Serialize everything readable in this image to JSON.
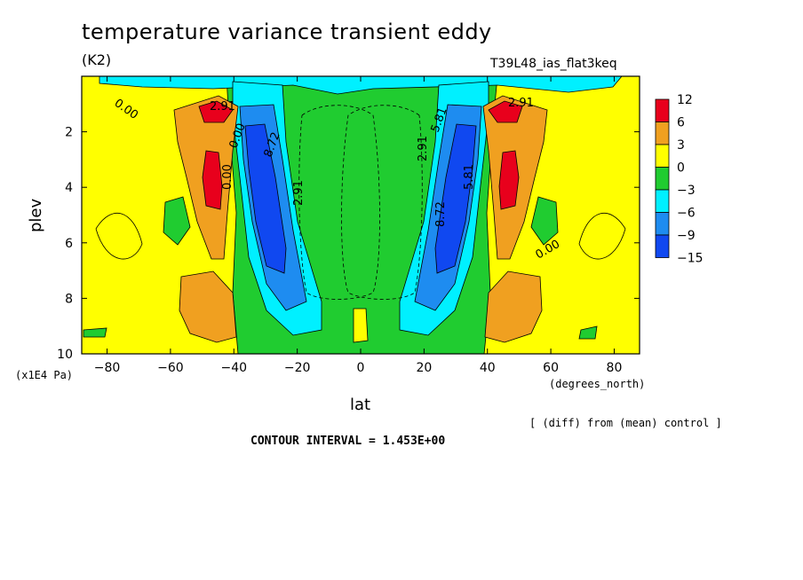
{
  "title": "temperature variance transient eddy",
  "units": "(K2)",
  "run_name": "T39L48_ias_flat3keq",
  "subtitle_note": "[ (diff) from (mean) control ]",
  "contour_interval": "CONTOUR INTERVAL = 1.453E+00",
  "chart_data": {
    "type": "heatmap",
    "title": "temperature variance transient eddy",
    "xlabel": "lat",
    "ylabel": "plev",
    "x_units": "(degrees_north)",
    "y_units": "(x1E4 Pa)",
    "xlim": [
      -88,
      88
    ],
    "ylim": [
      10,
      0
    ],
    "x_ticks": [
      -80,
      -60,
      -40,
      -20,
      0,
      20,
      40,
      60,
      80
    ],
    "x_tick_labels": [
      "−80",
      "−60",
      "−40",
      "−20",
      "0",
      "20",
      "40",
      "60",
      "80"
    ],
    "y_ticks": [
      2,
      4,
      6,
      8,
      10
    ],
    "y_tick_labels": [
      "2",
      "4",
      "6",
      "8",
      "10"
    ],
    "legend": {
      "placement": "right",
      "labels": [
        "12",
        "6",
        "3",
        "0",
        "−3",
        "−6",
        "−9",
        "−15"
      ],
      "colors": [
        "#e8001c",
        "#f0a020",
        "#ffff00",
        "#20cc30",
        "#00f0ff",
        "#1e8cf0",
        "#1048f0"
      ]
    },
    "regions": [
      {
        "name": "positive-core-south",
        "level": 12,
        "lat": -46,
        "plev": [
          3.5,
          4.4
        ],
        "color": "#e8001c"
      },
      {
        "name": "positive-top-south",
        "level": 12,
        "lat": -46,
        "plev": [
          1.2,
          1.5
        ],
        "color": "#e8001c"
      },
      {
        "name": "positive-core-north",
        "level": 12,
        "lat": 46,
        "plev": [
          3.5,
          4.4
        ],
        "color": "#e8001c"
      },
      {
        "name": "positive-top-north",
        "level": 12,
        "lat": 46,
        "plev": [
          1.2,
          1.5
        ],
        "color": "#e8001c"
      },
      {
        "name": "negative-core-south",
        "level": -15,
        "lat": -33,
        "plev": [
          2.0,
          7.0
        ],
        "color": "#1048f0"
      },
      {
        "name": "negative-core-north",
        "level": -15,
        "lat": 33,
        "plev": [
          2.0,
          7.0
        ],
        "color": "#1048f0"
      }
    ],
    "contour_labels": [
      "2.91",
      "0.00",
      "8.72",
      "5.81",
      "2.91",
      "2.91",
      "5.81",
      "8.72",
      "2.91",
      "0.00",
      "0.00",
      "0.00"
    ]
  }
}
